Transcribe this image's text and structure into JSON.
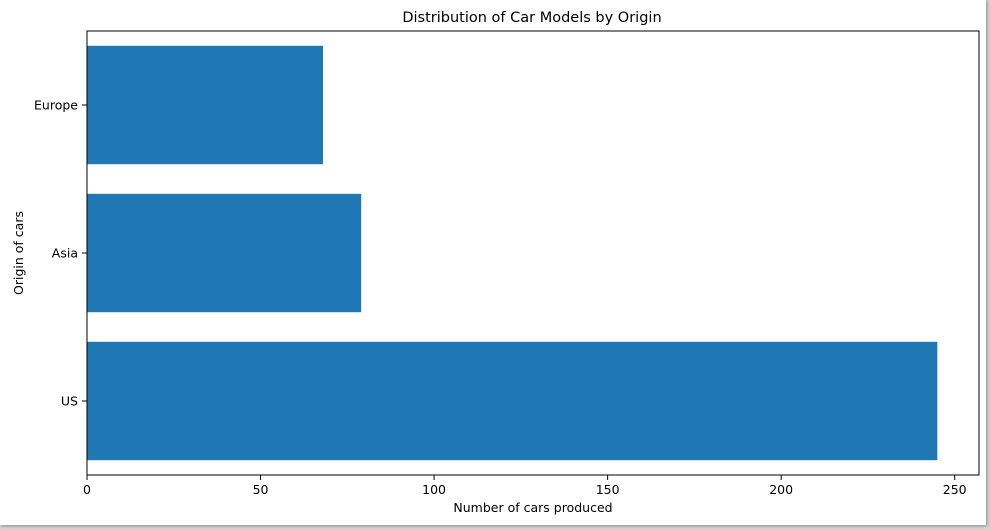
{
  "chart_data": {
    "type": "bar",
    "orientation": "horizontal",
    "title": "Distribution of Car Models by Origin",
    "xlabel": "Number of cars produced",
    "ylabel": "Origin of cars",
    "categories": [
      "US",
      "Asia",
      "Europe"
    ],
    "values": [
      245,
      79,
      68
    ],
    "xlim": [
      0,
      257
    ],
    "xticks": [
      0,
      50,
      100,
      150,
      200,
      250
    ],
    "xtick_labels": [
      "0",
      "50",
      "100",
      "150",
      "200",
      "250"
    ],
    "bar_color": "#1f77b4",
    "grid": false
  }
}
